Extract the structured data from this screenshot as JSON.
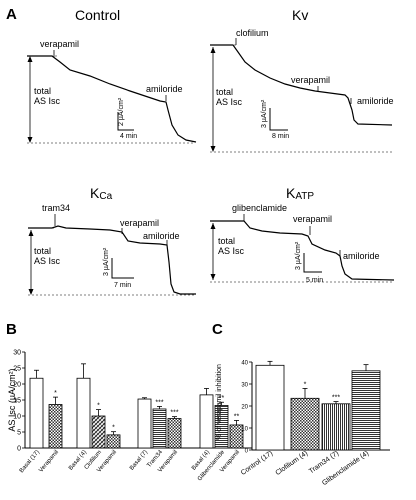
{
  "panel_letters": {
    "a": "A",
    "b": "B",
    "c": "C"
  },
  "traces": [
    {
      "title": "Control",
      "title_sub": "",
      "total_label": "total",
      "as_label": "AS Isc",
      "marker1": "verapamil",
      "marker2": "amiloride",
      "scale_current": "2 µA/cm²",
      "scale_time": "4 min"
    },
    {
      "title": "Kv",
      "title_sub": "",
      "total_label": "total",
      "as_label": "AS Isc",
      "marker0": "clofilium",
      "marker1": "verapamil",
      "marker2": "amiloride",
      "scale_current": "3 µA/cm²",
      "scale_time": "8 min"
    },
    {
      "title": "K",
      "title_sub": "Ca",
      "total_label": "total",
      "as_label": "AS Isc",
      "marker0": "tram34",
      "marker1": "verapamil",
      "marker2": "amiloride",
      "scale_current": "3 µA/cm²",
      "scale_time": "7 min"
    },
    {
      "title": "K",
      "title_sub": "ATP",
      "total_label": "total",
      "as_label": "AS Isc",
      "marker0": "glibenclamide",
      "marker1": "verapamil",
      "marker2": "amiloride",
      "scale_current": "3 µA/cm²",
      "scale_time": "5 min"
    }
  ],
  "chart_data": [
    {
      "type": "bar",
      "ylabel": "AS Isc (µA/cm²)",
      "ylim": [
        0,
        30
      ],
      "yticks": [
        0,
        5,
        10,
        15,
        20,
        25,
        30
      ],
      "categories": [
        "Basal (17)",
        "Verapamil",
        "Basal (4)",
        "Clofilium",
        "Verapamil",
        "Basal (7)",
        "Tram34",
        "Verapamil",
        "Basal (4)",
        "Glibenclamide",
        "Verapamil"
      ],
      "values": [
        21.8,
        13.6,
        21.8,
        10.0,
        4.1,
        15.3,
        12.2,
        9.2,
        16.6,
        13.3,
        7.2
      ],
      "errors": [
        2.5,
        2.3,
        4.5,
        2.0,
        1.0,
        0.4,
        0.8,
        0.6,
        2.0,
        1.0,
        1.4
      ],
      "significance": [
        "",
        "*",
        "",
        "*",
        "*",
        "",
        "***",
        "***",
        "",
        "**",
        "**"
      ]
    },
    {
      "type": "bar",
      "ylabel": "% of verapamil inhibition",
      "ylim": [
        0,
        40
      ],
      "yticks": [
        0,
        10,
        20,
        30,
        40
      ],
      "categories": [
        "Control (17)",
        "Clofilium (4)",
        "Tram34 (7)",
        "Glibenclamide (4)"
      ],
      "values": [
        38.5,
        23.5,
        21.0,
        36.0
      ],
      "errors": [
        1.8,
        4.5,
        1.0,
        2.8
      ],
      "significance": [
        "",
        "*",
        "***",
        ""
      ]
    }
  ]
}
